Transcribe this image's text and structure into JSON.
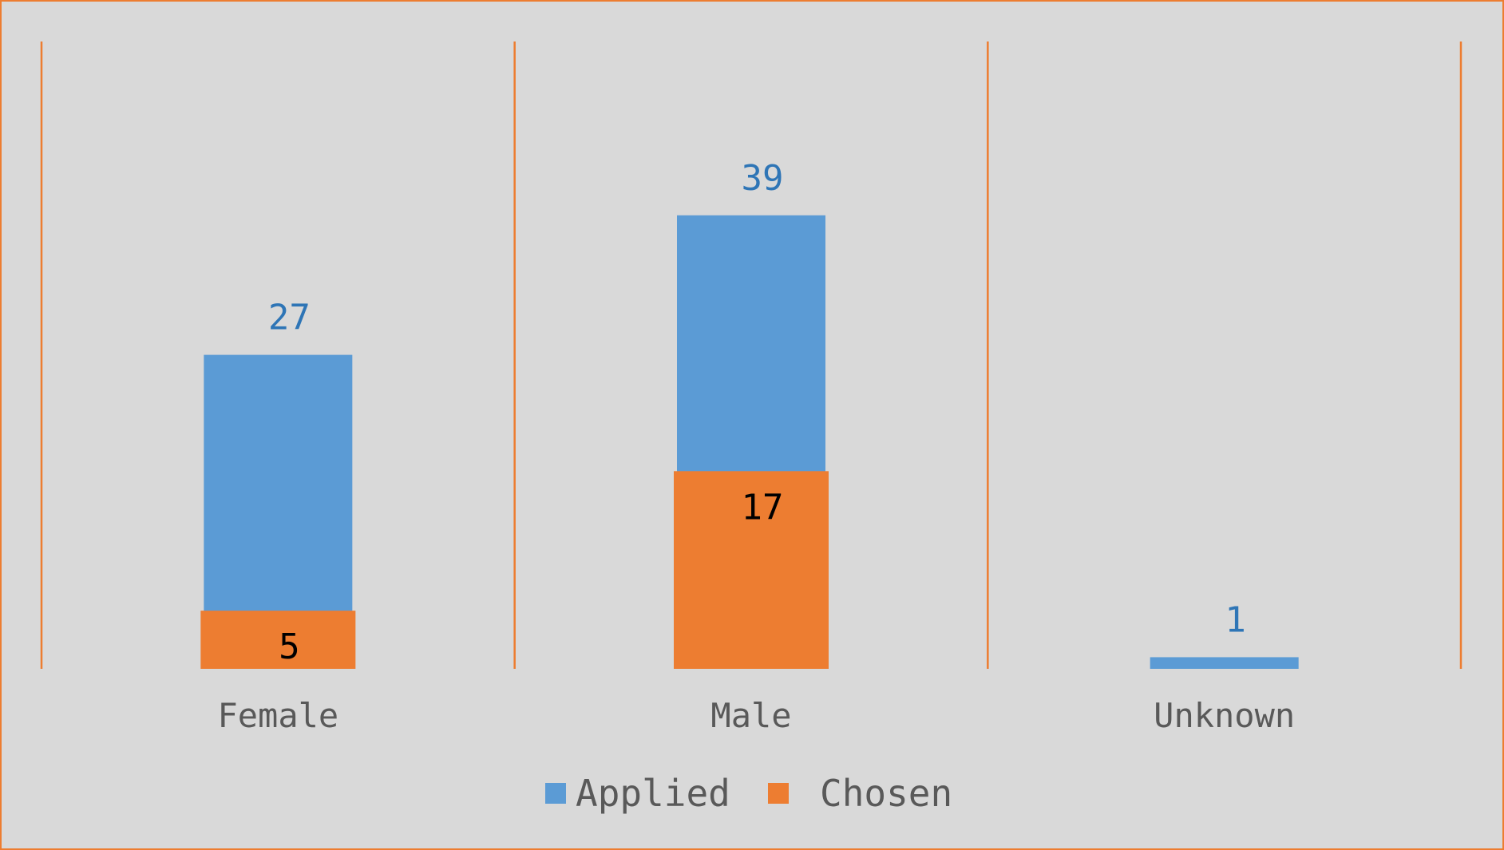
{
  "chart_data": {
    "type": "bar",
    "categories": [
      "Female",
      "Male",
      "Unknown"
    ],
    "series": [
      {
        "name": "Applied",
        "values": [
          27,
          39,
          1
        ],
        "color": "#5b9bd5",
        "label_color": "#2e75b6"
      },
      {
        "name": "Chosen",
        "values": [
          5,
          17,
          null
        ],
        "color": "#ed7d31",
        "label_color": "#000000"
      }
    ],
    "title": "",
    "xlabel": "",
    "ylabel": "",
    "ylim": [
      0,
      45
    ],
    "grid": false,
    "category_dividers": true,
    "divider_color": "#ed7d31",
    "background": "#d9d9d9",
    "legend_position": "bottom"
  }
}
